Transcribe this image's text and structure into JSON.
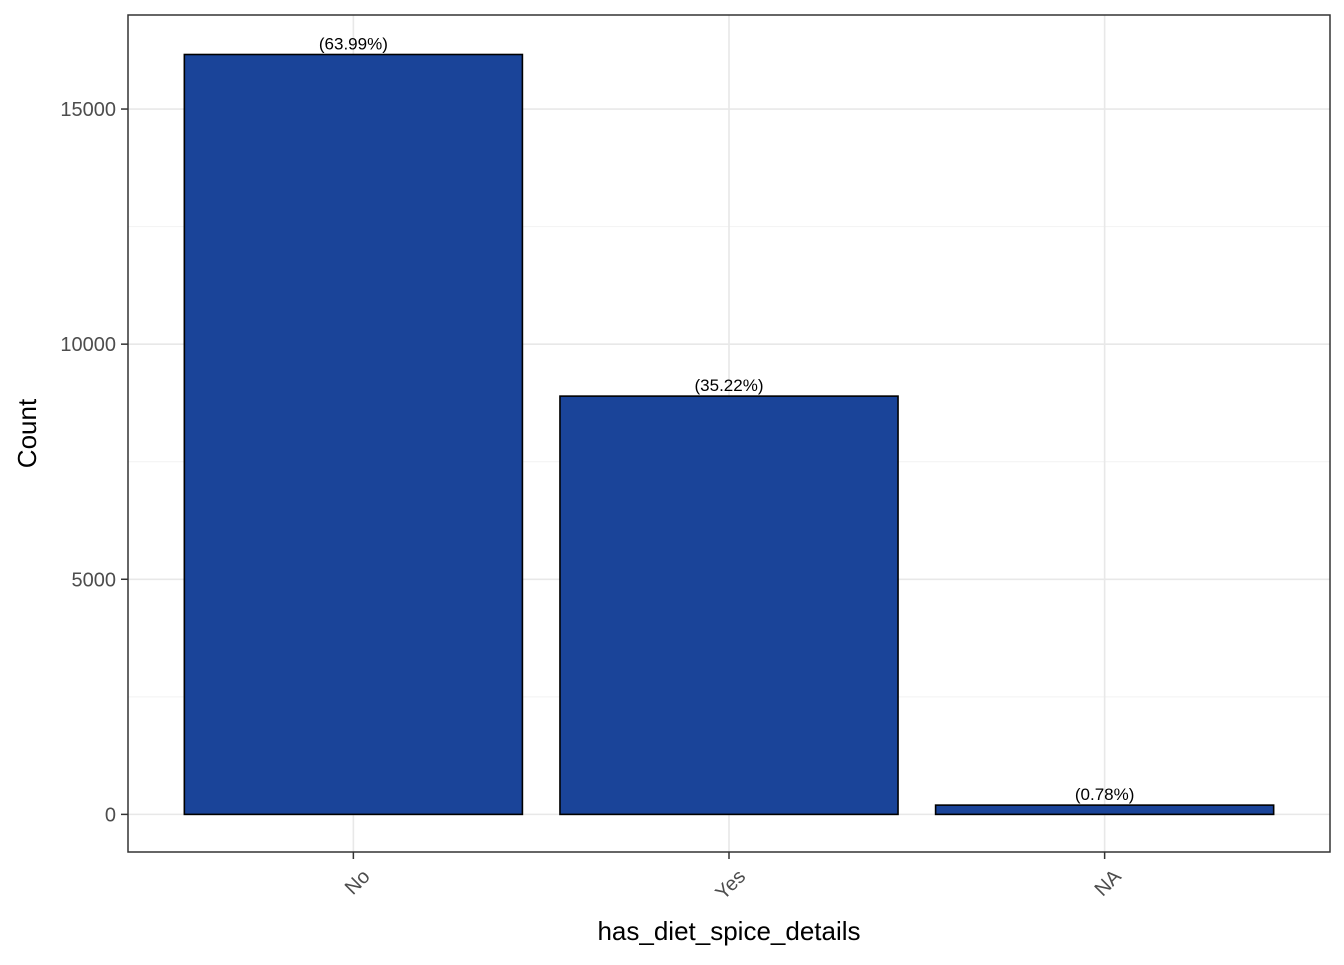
{
  "chart_data": {
    "type": "bar",
    "categories": [
      "No",
      "Yes",
      "NA"
    ],
    "values": [
      16160,
      8895,
      197
    ],
    "data_labels": [
      "(63.99%)",
      "(35.22%)",
      "(0.78%)"
    ],
    "title": "",
    "xlabel": "has_diet_spice_details",
    "ylabel": "Count",
    "ylim": [
      -800,
      17000
    ],
    "yticks": [
      0,
      5000,
      10000,
      15000
    ],
    "ytick_labels": [
      "0",
      "5000",
      "10000",
      "15000"
    ],
    "grid": true,
    "x_tick_rotation_deg": -45,
    "bar_color": "#1a4499",
    "bar_outline_color": "#000000",
    "panel_border_color": "#333333",
    "grid_color": "#ebebeb"
  }
}
